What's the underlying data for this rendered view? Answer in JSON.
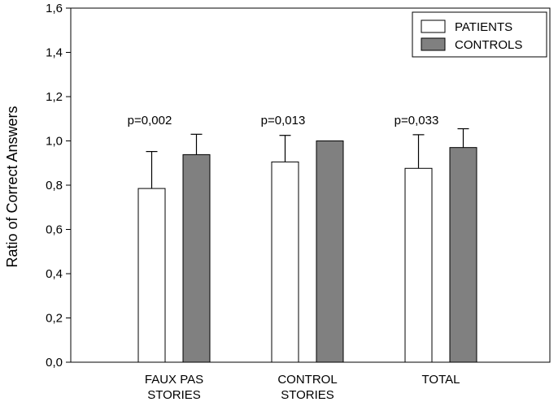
{
  "chart_data": {
    "type": "bar",
    "ylabel": "Ratio of Correct Answers",
    "xlabel": "",
    "ylim": [
      0.0,
      1.6
    ],
    "yticks": [
      "0,0",
      "0,2",
      "0,4",
      "0,6",
      "0,8",
      "1,0",
      "1,2",
      "1,4",
      "1,6"
    ],
    "categories": [
      [
        "FAUX PAS",
        "STORIES"
      ],
      [
        "CONTROL",
        "STORIES"
      ],
      [
        "TOTAL"
      ]
    ],
    "series": [
      {
        "name": "PATIENTS",
        "color": "#ffffff",
        "values": [
          0.785,
          0.905,
          0.876
        ],
        "error": [
          0.167,
          0.12,
          0.152
        ]
      },
      {
        "name": "CONTROLS",
        "color": "#808080",
        "values": [
          0.938,
          1.0,
          0.97
        ],
        "error": [
          0.092,
          0.0,
          0.085
        ]
      }
    ],
    "annotations": [
      "p=0,002",
      "p=0,013",
      "p=0,033"
    ],
    "legend_position": "top-right",
    "grid": false
  }
}
